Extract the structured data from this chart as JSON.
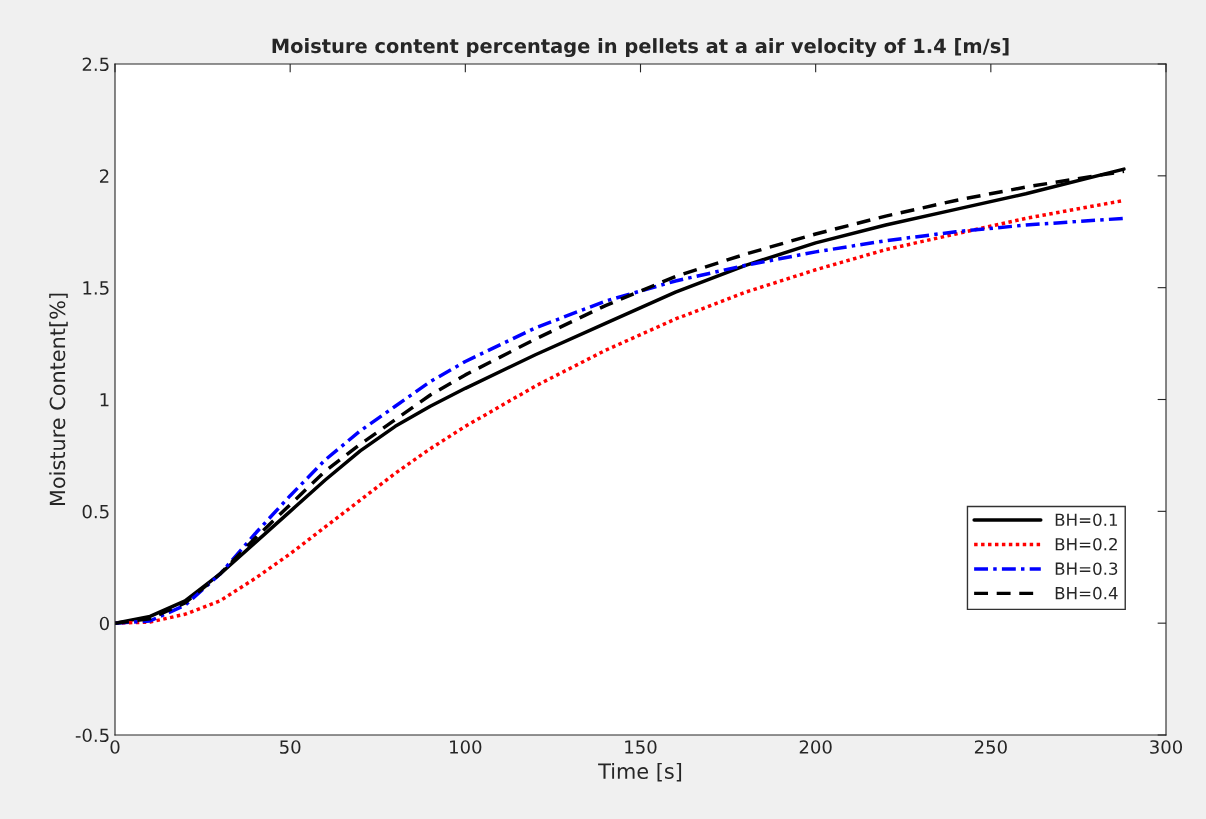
{
  "chart_data": {
    "type": "line",
    "title": "Moisture content percentage in pellets at a air velocity of 1.4 [m/s]",
    "xlabel": "Time [s]",
    "ylabel": "Moisture Content[%]",
    "x": [
      0,
      10,
      20,
      30,
      40,
      50,
      60,
      70,
      80,
      90,
      100,
      120,
      140,
      160,
      180,
      200,
      220,
      240,
      260,
      288
    ],
    "series": [
      {
        "name": "BH=0.1",
        "color": "#000000",
        "line_style": "solid",
        "values": [
          0,
          0.03,
          0.1,
          0.22,
          0.36,
          0.5,
          0.64,
          0.77,
          0.88,
          0.97,
          1.05,
          1.2,
          1.34,
          1.48,
          1.6,
          1.7,
          1.78,
          1.85,
          1.92,
          2.03
        ]
      },
      {
        "name": "BH=0.2",
        "color": "#ff0000",
        "line_style": "dotted",
        "values": [
          0,
          0.005,
          0.04,
          0.1,
          0.2,
          0.31,
          0.43,
          0.55,
          0.67,
          0.78,
          0.88,
          1.06,
          1.22,
          1.36,
          1.48,
          1.58,
          1.67,
          1.74,
          1.81,
          1.89
        ]
      },
      {
        "name": "BH=0.3",
        "color": "#0000ff",
        "line_style": "dashdot",
        "values": [
          0,
          0.01,
          0.08,
          0.22,
          0.4,
          0.57,
          0.73,
          0.86,
          0.97,
          1.08,
          1.17,
          1.32,
          1.44,
          1.53,
          1.6,
          1.66,
          1.71,
          1.75,
          1.78,
          1.81
        ]
      },
      {
        "name": "BH=0.4",
        "color": "#000000",
        "line_style": "dashed",
        "values": [
          0,
          0.02,
          0.09,
          0.22,
          0.38,
          0.53,
          0.68,
          0.8,
          0.91,
          1.02,
          1.11,
          1.27,
          1.42,
          1.55,
          1.65,
          1.74,
          1.82,
          1.89,
          1.95,
          2.02
        ]
      }
    ],
    "xlim": [
      0,
      300
    ],
    "xticks": [
      0,
      50,
      100,
      150,
      200,
      250,
      300
    ],
    "ylim": [
      -0.5,
      2.5
    ],
    "yticks": [
      -0.5,
      0,
      0.5,
      1,
      1.5,
      2,
      2.5
    ],
    "grid": false,
    "legend": "bottom right",
    "marker": "none"
  }
}
